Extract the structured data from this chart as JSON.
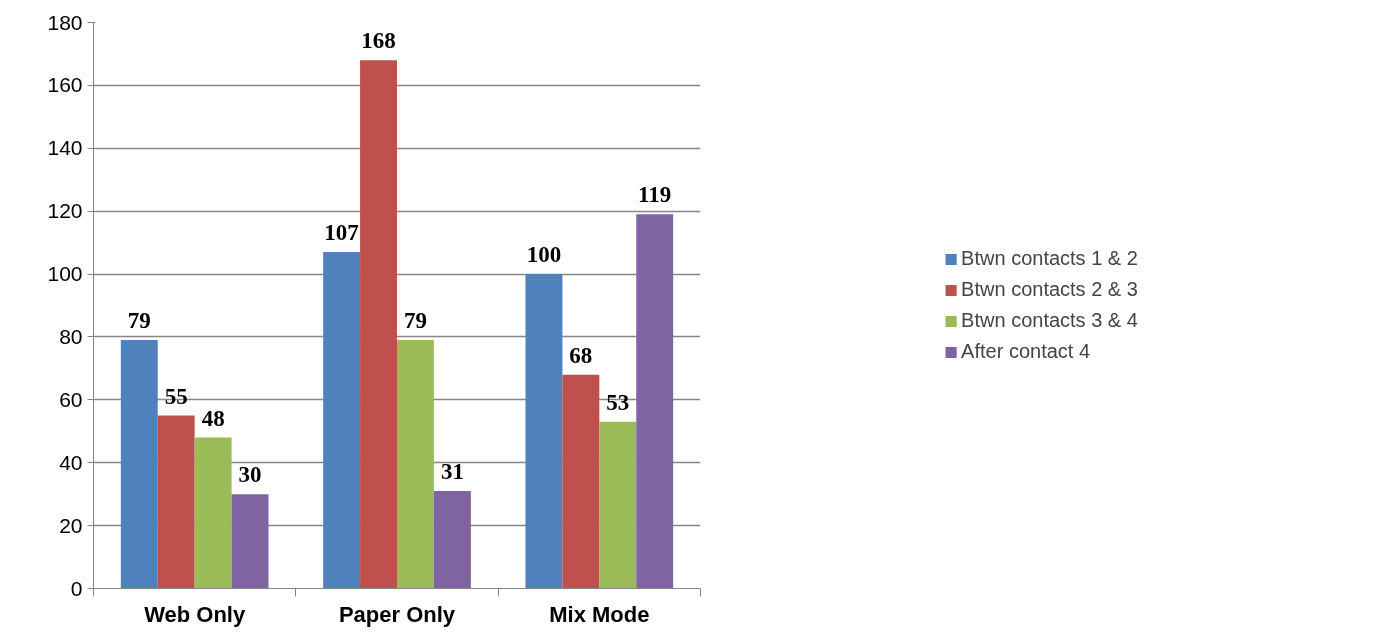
{
  "chart_data": {
    "type": "bar",
    "categories": [
      "Web Only",
      "Paper Only",
      "Mix Mode"
    ],
    "series": [
      {
        "name": "Btwn contacts 1 & 2",
        "color": "#4f81bd",
        "values": [
          79,
          107,
          100
        ]
      },
      {
        "name": "Btwn contacts 2 & 3",
        "color": "#c0504d",
        "values": [
          55,
          168,
          68
        ]
      },
      {
        "name": "Btwn contacts 3 & 4",
        "color": "#9bbb59",
        "values": [
          48,
          79,
          53
        ]
      },
      {
        "name": "After contact 4",
        "color": "#8064a2",
        "values": [
          30,
          31,
          119
        ]
      }
    ],
    "ylim": [
      0,
      180
    ],
    "yticks": [
      0,
      20,
      40,
      60,
      80,
      100,
      120,
      140,
      160,
      180
    ],
    "grid": "y",
    "legend": "right",
    "data_labels": true
  }
}
